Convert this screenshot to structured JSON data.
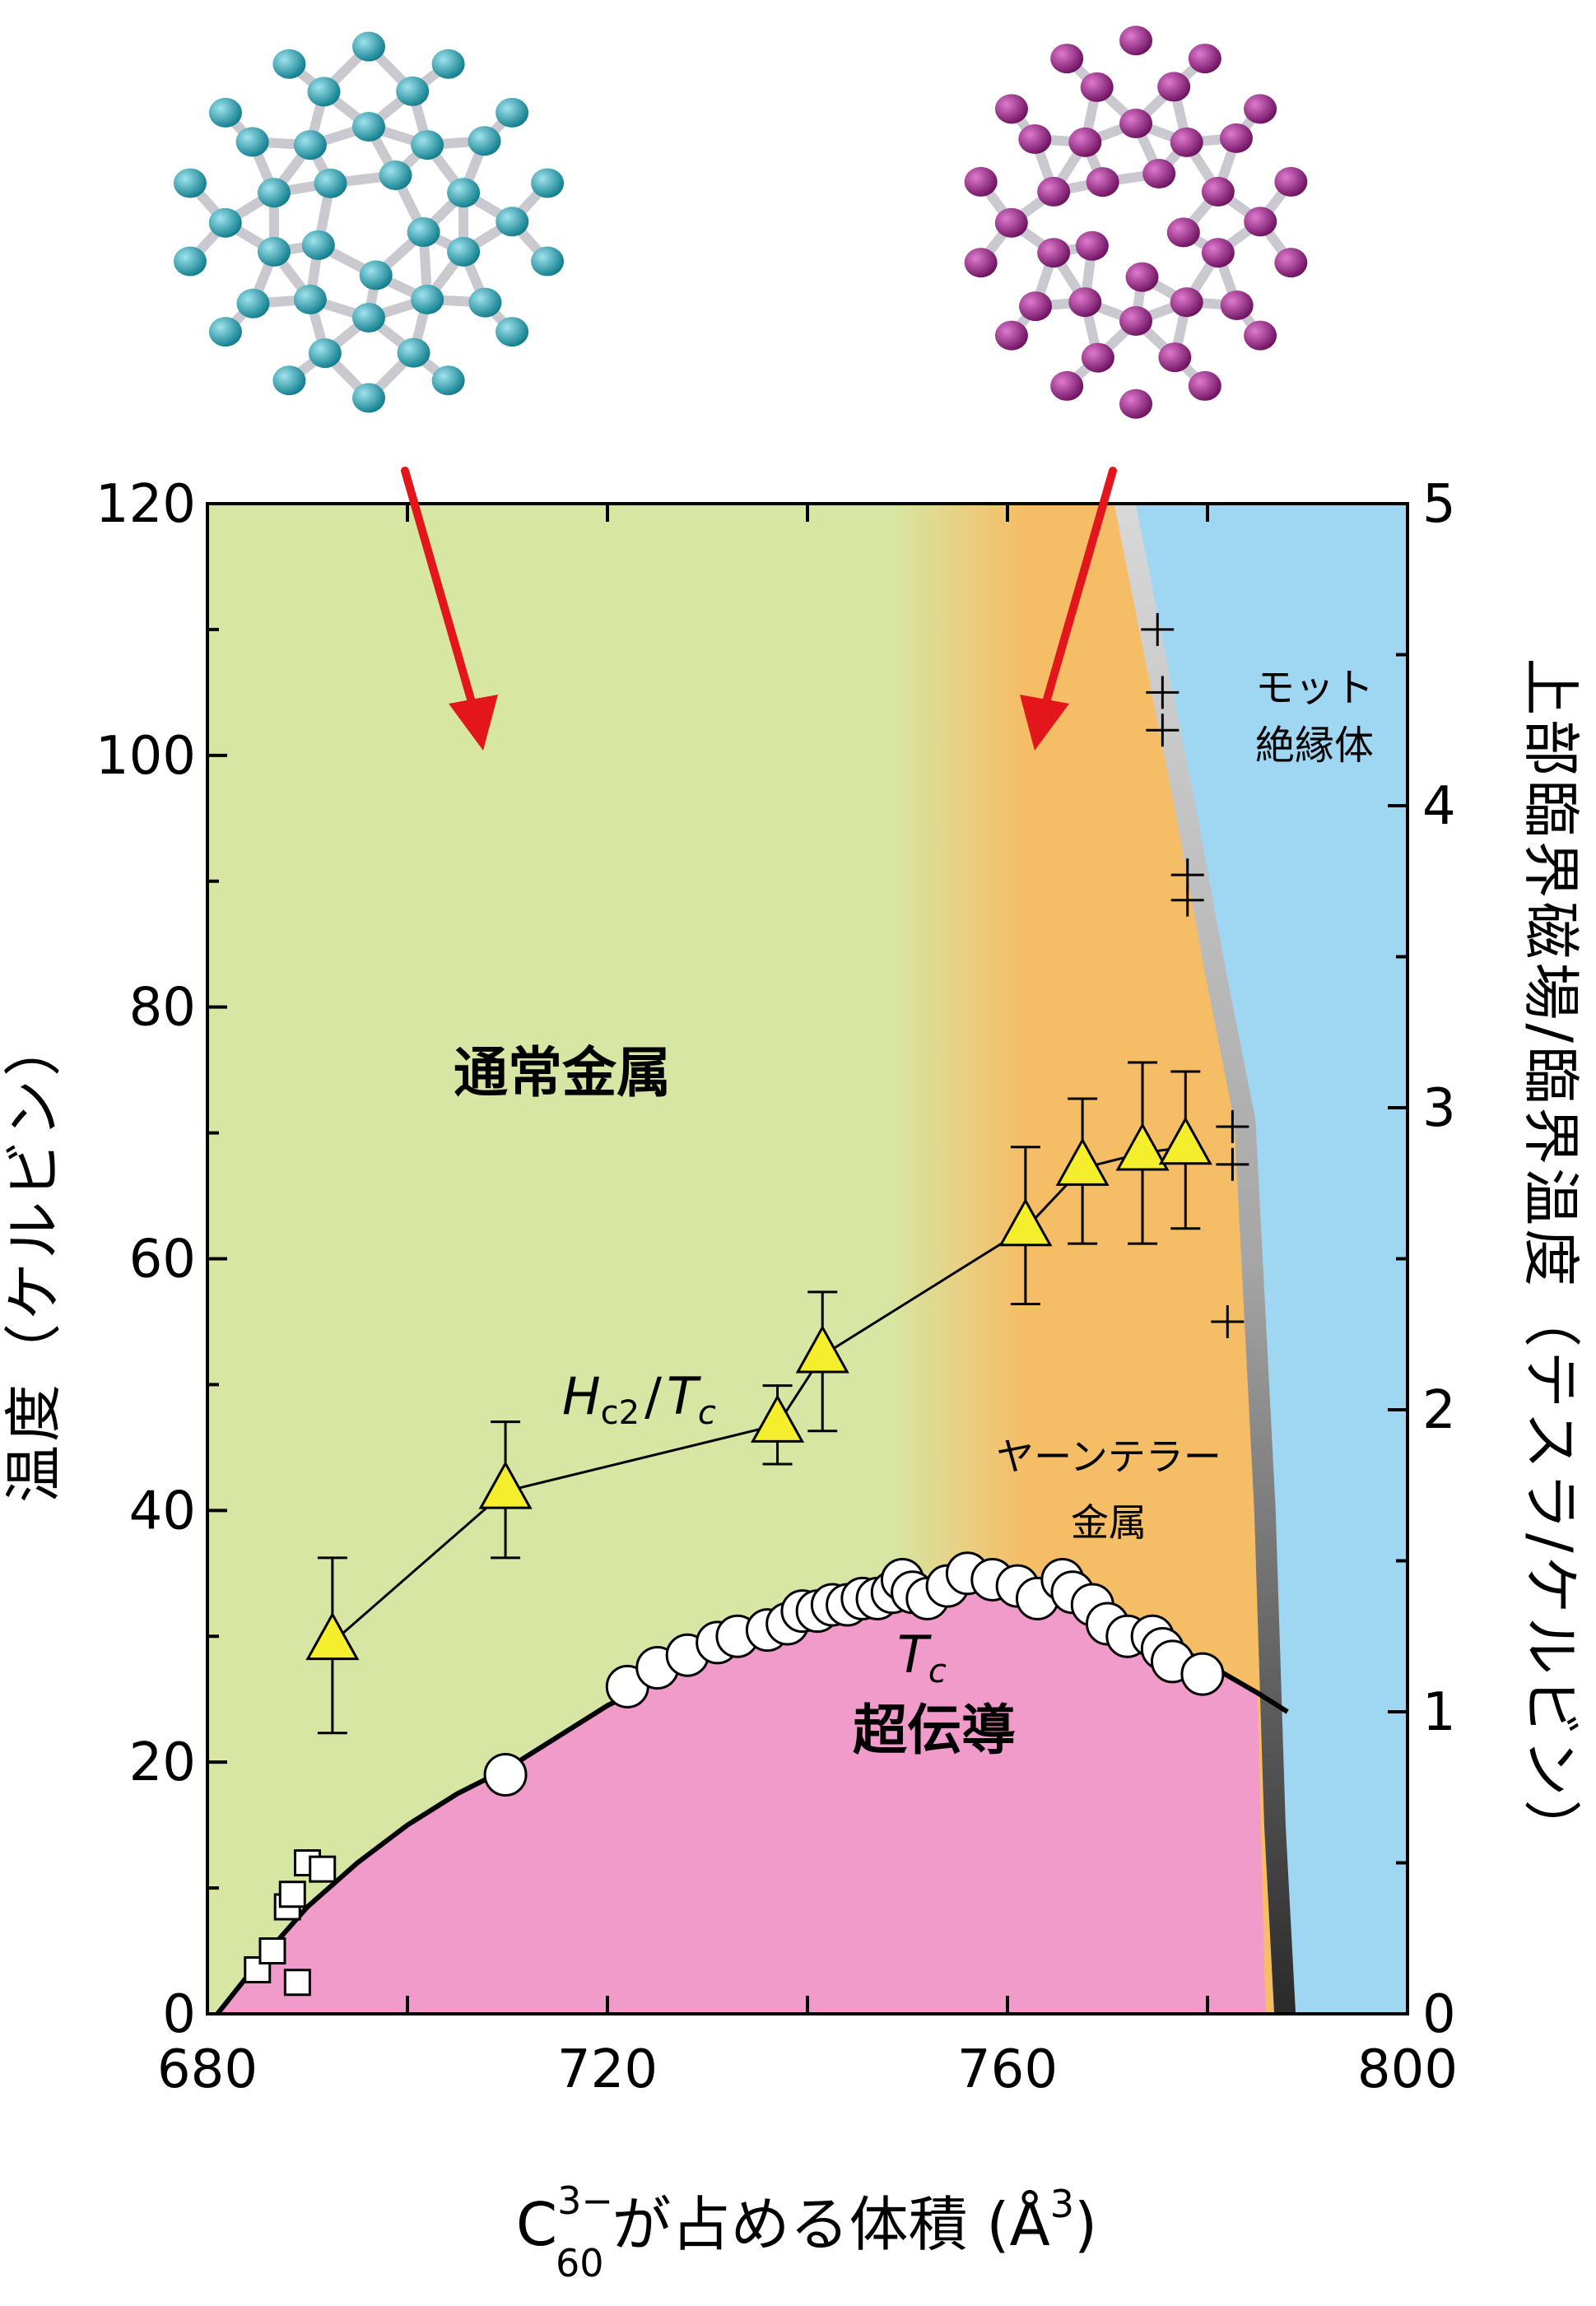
{
  "colors": {
    "normal_metal": "#d7e6a2",
    "jahn_teller_metal": "#f6bd67",
    "mott_insulator": "#9fd7f3",
    "superconductor": "#f19bcb",
    "arrow": "#e2161b",
    "triangle_fill": "#f5ee2d",
    "c60_atom": "#1a9aac",
    "distorted_atom": "#8e1a7c"
  },
  "chart_data": {
    "type": "scatter",
    "xlabel": {
      "base": "C",
      "subscript": "60",
      "superscript": "3−",
      "rest": "が占める体積 (Å",
      "unit_superscript": "3",
      "close": ")"
    },
    "ylabel": "温度（ケルビン）",
    "y2label": "上部臨界磁場/臨界温度（テスラ/ケルビン）",
    "xlim": [
      680,
      800
    ],
    "ylim": [
      0,
      120
    ],
    "y2lim": [
      0,
      5
    ],
    "x_ticks": [
      "680",
      "720",
      "760",
      "800"
    ],
    "y_ticks": [
      "0",
      "20",
      "40",
      "60",
      "80",
      "100",
      "120"
    ],
    "y2_ticks": [
      "0",
      "1",
      "2",
      "3",
      "4",
      "5"
    ],
    "region_labels": {
      "normal_metal": "通常金属",
      "superconductor": "超伝導",
      "jt_metal_1": "ヤーンテラー",
      "jt_metal_2": "金属",
      "mott_1": "モット",
      "mott_2": "絶縁体"
    },
    "curve_labels": {
      "hc2_main": "H",
      "hc2_sub": "c2",
      "hc2_slash": "/",
      "tc_main": "T",
      "tc_sub": "c",
      "tc2_main": "T",
      "tc2_sub": "c"
    },
    "tc_curve": [
      [
        681,
        0
      ],
      [
        685,
        4
      ],
      [
        690,
        8.5
      ],
      [
        695,
        12
      ],
      [
        700,
        15
      ],
      [
        705,
        17.5
      ],
      [
        710,
        19.5
      ],
      [
        715,
        22
      ],
      [
        720,
        24.5
      ],
      [
        725,
        26.5
      ],
      [
        730,
        28.5
      ],
      [
        735,
        30
      ],
      [
        740,
        31.5
      ],
      [
        745,
        32.5
      ],
      [
        750,
        33.3
      ],
      [
        755,
        33.8
      ],
      [
        760,
        33.7
      ],
      [
        765,
        33
      ],
      [
        770,
        31.8
      ],
      [
        775,
        30
      ],
      [
        780,
        27.8
      ],
      [
        785,
        25.5
      ],
      [
        788,
        24
      ]
    ],
    "mott_boundary": [
      [
        771,
        120
      ],
      [
        774,
        108
      ],
      [
        777,
        96
      ],
      [
        780,
        83
      ],
      [
        783,
        71
      ],
      [
        785,
        40
      ],
      [
        786,
        15
      ],
      [
        787,
        0
      ]
    ],
    "series": [
      {
        "name": "Tc (circles)",
        "marker": "circle",
        "x": [
          709.8,
          722,
          725,
          728,
          731,
          733,
          736,
          738,
          739.5,
          741,
          742.5,
          744,
          745.5,
          747,
          748.5,
          749.5,
          750.5,
          752,
          754,
          756,
          758.5,
          761,
          763,
          765.5,
          766.5,
          768.5,
          770,
          772,
          774.5,
          775.5,
          776.5,
          779.5
        ],
        "y": [
          19,
          26,
          27.5,
          28.5,
          29.5,
          30,
          30.5,
          31,
          32,
          32,
          32.5,
          32.5,
          33,
          33,
          33.5,
          34.5,
          33.5,
          33,
          34,
          35,
          34.5,
          34,
          33,
          34.5,
          33.5,
          32.5,
          31,
          30,
          30,
          29,
          28,
          27
        ]
      },
      {
        "name": "Tc (squares)",
        "marker": "square",
        "x": [
          685,
          686.5,
          688,
          688.5,
          689,
          690,
          691.5
        ],
        "y": [
          3.5,
          5,
          8.5,
          9.5,
          2.5,
          12,
          11.5
        ]
      },
      {
        "name": "Hc2/Tc (triangles)",
        "marker": "triangle",
        "axis": "right",
        "x": [
          692.5,
          709.8,
          737,
          741.5,
          761.8,
          767.5,
          773.5,
          777.8
        ],
        "y": [
          1.23,
          1.73,
          1.95,
          2.18,
          2.6,
          2.8,
          2.85,
          2.87
        ],
        "err_low": [
          0.3,
          0.22,
          0.13,
          0.25,
          0.25,
          0.25,
          0.3,
          0.27
        ],
        "err_high": [
          0.28,
          0.23,
          0.13,
          0.21,
          0.27,
          0.23,
          0.3,
          0.25
        ]
      },
      {
        "name": "Mott (crosses)",
        "marker": "plus",
        "x": [
          775,
          775.5,
          775.5,
          778,
          778,
          782.5,
          782.5,
          782
        ],
        "y": [
          110,
          105,
          102,
          90.5,
          88.5,
          70.5,
          67.5,
          55
        ]
      }
    ]
  }
}
